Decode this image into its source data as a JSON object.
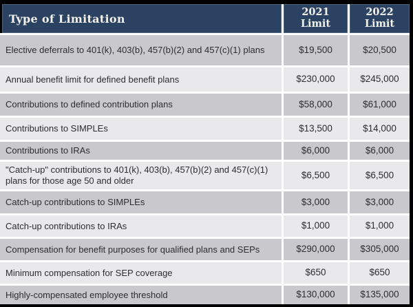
{
  "header": {
    "type_column_label": "Type of Limitation",
    "col_2021": {
      "line1": "2021",
      "line2": "Limit"
    },
    "col_2022": {
      "line1": "2022",
      "line2": "Limit"
    }
  },
  "table": {
    "rows": [
      {
        "label": "Elective deferrals to 401(k), 403(b), 457(b)(2) and 457(c)(1) plans",
        "limit_2021": "$19,500",
        "limit_2022": "$20,500"
      },
      {
        "label": "Annual benefit limit for defined benefit plans",
        "limit_2021": "$230,000",
        "limit_2022": "$245,000"
      },
      {
        "label": "Contributions to defined contribution plans",
        "limit_2021": "$58,000",
        "limit_2022": "$61,000"
      },
      {
        "label": "Contributions to SIMPLEs",
        "limit_2021": "$13,500",
        "limit_2022": "$14,000"
      },
      {
        "label": "Contributions to IRAs",
        "limit_2021": "$6,000",
        "limit_2022": "$6,000"
      },
      {
        "label": "\"Catch-up\" contributions to 401(k), 403(b), 457(b)(2) and 457(c)(1) plans for those age 50 and older",
        "limit_2021": "$6,500",
        "limit_2022": "$6,500"
      },
      {
        "label": "Catch-up contributions to SIMPLEs",
        "limit_2021": "$3,000",
        "limit_2022": "$3,000"
      },
      {
        "label": "Catch-up contributions to IRAs",
        "limit_2021": "$1,000",
        "limit_2022": "$1,000"
      },
      {
        "label": "Compensation for benefit purposes for qualified plans and SEPs",
        "limit_2021": "$290,000",
        "limit_2022": "$305,000"
      },
      {
        "label": "Minimum compensation for SEP coverage",
        "limit_2021": "$650",
        "limit_2022": "$650"
      },
      {
        "label": "Highly-compensated employee threshold",
        "limit_2021": "$130,000",
        "limit_2022": "$135,000"
      }
    ]
  },
  "colors": {
    "header_background": "#2b4262",
    "header_text": "#f2f1ea",
    "row_dark": "#c9c9cd",
    "row_light": "#e9e9eb",
    "frame": "#000000",
    "body_text": "#2d2d2f"
  }
}
